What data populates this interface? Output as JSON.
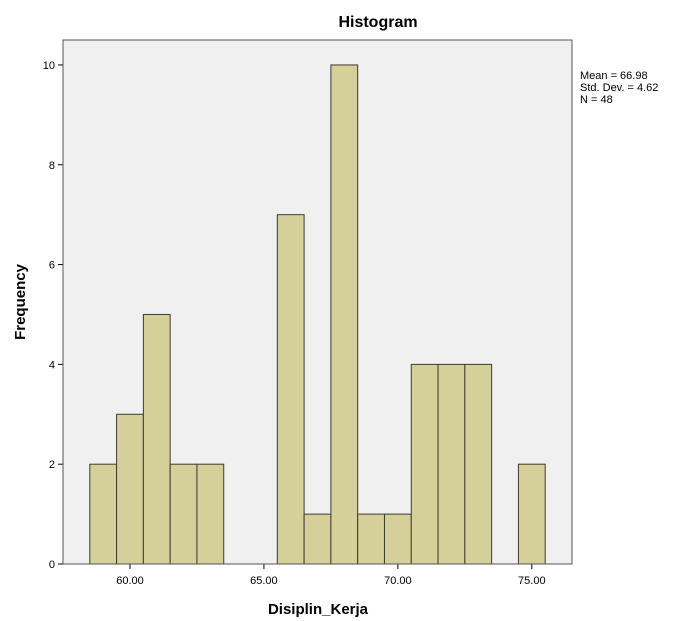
{
  "chart_data": {
    "type": "bar",
    "title": "Histogram",
    "xlabel": "Disiplin_Kerja",
    "ylabel": "Frequency",
    "x_ticks": [
      "60.00",
      "65.00",
      "70.00",
      "75.00"
    ],
    "x_tick_values": [
      60,
      65,
      70,
      75
    ],
    "xlim": [
      57.5,
      76.5
    ],
    "y_ticks": [
      "0",
      "2",
      "4",
      "6",
      "8",
      "10"
    ],
    "y_tick_values": [
      0,
      2,
      4,
      6,
      8,
      10
    ],
    "ylim": [
      0,
      10.5
    ],
    "bin_width": 1,
    "bins": [
      {
        "center": 59,
        "value": 2
      },
      {
        "center": 60,
        "value": 3
      },
      {
        "center": 61,
        "value": 5
      },
      {
        "center": 62,
        "value": 2
      },
      {
        "center": 63,
        "value": 2
      },
      {
        "center": 66,
        "value": 7
      },
      {
        "center": 67,
        "value": 1
      },
      {
        "center": 68,
        "value": 10
      },
      {
        "center": 69,
        "value": 1
      },
      {
        "center": 70,
        "value": 1
      },
      {
        "center": 71,
        "value": 4
      },
      {
        "center": 72,
        "value": 4
      },
      {
        "center": 73,
        "value": 4
      },
      {
        "center": 75,
        "value": 2
      }
    ],
    "grid": false,
    "stats": {
      "mean": "Mean = 66.98",
      "std_dev": "Std. Dev. = 4.62",
      "n": "N = 48"
    },
    "colors": {
      "bar_fill": "#d5d09a",
      "bar_stroke": "#3d3b30",
      "plot_bg": "#f0f0f0",
      "frame": "#555555"
    }
  }
}
